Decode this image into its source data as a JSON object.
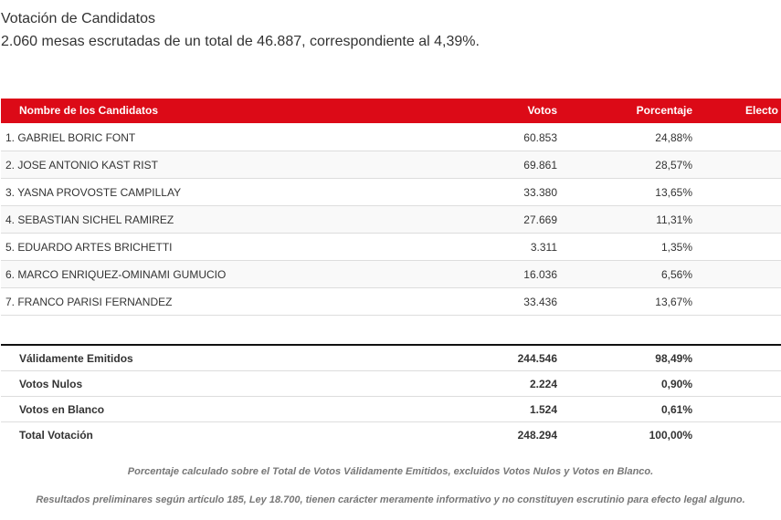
{
  "title": "Votación de Candidatos",
  "subtitle": "2.060 mesas escrutadas de un total de 46.887, correspondiente al 4,39%.",
  "accent": "#dc0a17",
  "table": {
    "headers": {
      "name": "Nombre de los Candidatos",
      "votes": "Votos",
      "pct": "Porcentaje",
      "elected": "Electo"
    },
    "rows": [
      {
        "name": "1. GABRIEL BORIC FONT",
        "votes": "60.853",
        "pct": "24,88%"
      },
      {
        "name": "2. JOSE ANTONIO KAST RIST",
        "votes": "69.861",
        "pct": "28,57%"
      },
      {
        "name": "3. YASNA PROVOSTE CAMPILLAY",
        "votes": "33.380",
        "pct": "13,65%"
      },
      {
        "name": "4. SEBASTIAN SICHEL RAMIREZ",
        "votes": "27.669",
        "pct": "11,31%"
      },
      {
        "name": "5. EDUARDO ARTES BRICHETTI",
        "votes": "3.311",
        "pct": "1,35%"
      },
      {
        "name": "6. MARCO ENRIQUEZ-OMINAMI GUMUCIO",
        "votes": "16.036",
        "pct": "6,56%"
      },
      {
        "name": "7. FRANCO PARISI FERNANDEZ",
        "votes": "33.436",
        "pct": "13,67%"
      }
    ]
  },
  "summary": [
    {
      "label": "Válidamente Emitidos",
      "votes": "244.546",
      "pct": "98,49%"
    },
    {
      "label": "Votos Nulos",
      "votes": "2.224",
      "pct": "0,90%"
    },
    {
      "label": "Votos en Blanco",
      "votes": "1.524",
      "pct": "0,61%"
    },
    {
      "label": "Total Votación",
      "votes": "248.294",
      "pct": "100,00%"
    }
  ],
  "notes": [
    "Porcentaje calculado sobre el Total de Votos Válidamente Emitidos, excluidos Votos Nulos y Votos en Blanco.",
    "Resultados preliminares según artículo 185, Ley 18.700, tienen carácter meramente informativo y no constituyen escrutinio para efecto legal alguno."
  ]
}
